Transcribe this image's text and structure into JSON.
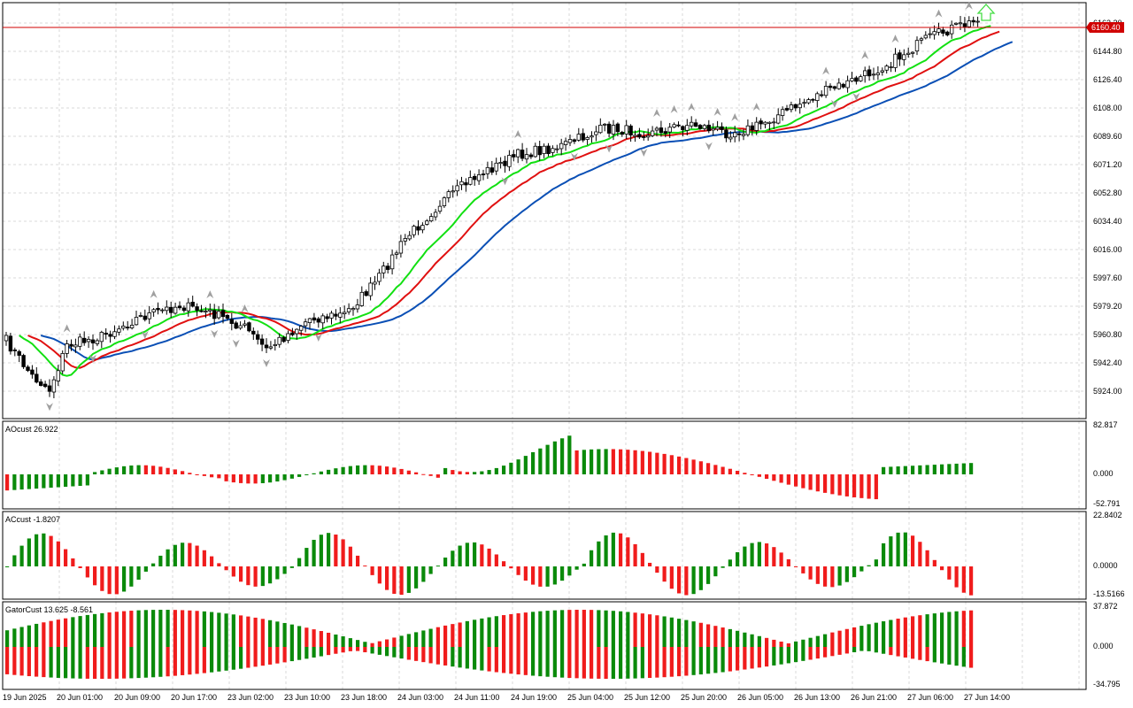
{
  "colors": {
    "background": "#ffffff",
    "grid": "#d9d9d9",
    "frame": "#000000",
    "bull_bar": "#ffffff",
    "bear_bar": "#000000",
    "jaw": "#0a4fb5",
    "teeth": "#e01010",
    "lips": "#12e012",
    "histo_up": "#0a8a0a",
    "histo_down": "#f01c1c",
    "price_line": "#d00000",
    "price_tag_bg": "#d00000",
    "signal_arrow": "#44dd44",
    "fractal": "#a0a0a0"
  },
  "main_chart": {
    "price_axis_labels": [
      "6163.20",
      "6144.80",
      "6126.40",
      "6108.00",
      "6089.60",
      "6071.20",
      "6052.80",
      "6034.40",
      "6016.00",
      "5997.60",
      "5979.20",
      "5960.80",
      "5942.40",
      "5924.00"
    ],
    "current_price": "6160.40",
    "signal": "buy-arrow-icon"
  },
  "indicators": [
    {
      "name": "ao-panel",
      "title": "AOcust 26.922",
      "scale_labels": [
        "82.817",
        "0.000",
        "-52.791"
      ]
    },
    {
      "name": "ac-panel",
      "title": "ACcust -1.8207",
      "scale_labels": [
        "22.8402",
        "0.0000",
        "-13.5166"
      ]
    },
    {
      "name": "gator-panel",
      "title": "GatorCust 13.625 -8.561",
      "scale_labels": [
        "37.872",
        "0.000",
        "-34.795"
      ]
    }
  ],
  "time_axis_labels": [
    "19 Jun 2025",
    "20 Jun 01:00",
    "20 Jun 09:00",
    "20 Jun 17:00",
    "23 Jun 02:00",
    "23 Jun 10:00",
    "23 Jun 18:00",
    "24 Jun 03:00",
    "24 Jun 11:00",
    "24 Jun 19:00",
    "25 Jun 04:00",
    "25 Jun 12:00",
    "25 Jun 20:00",
    "26 Jun 05:00",
    "26 Jun 13:00",
    "26 Jun 21:00",
    "27 Jun 06:00",
    "27 Jun 14:00"
  ]
}
